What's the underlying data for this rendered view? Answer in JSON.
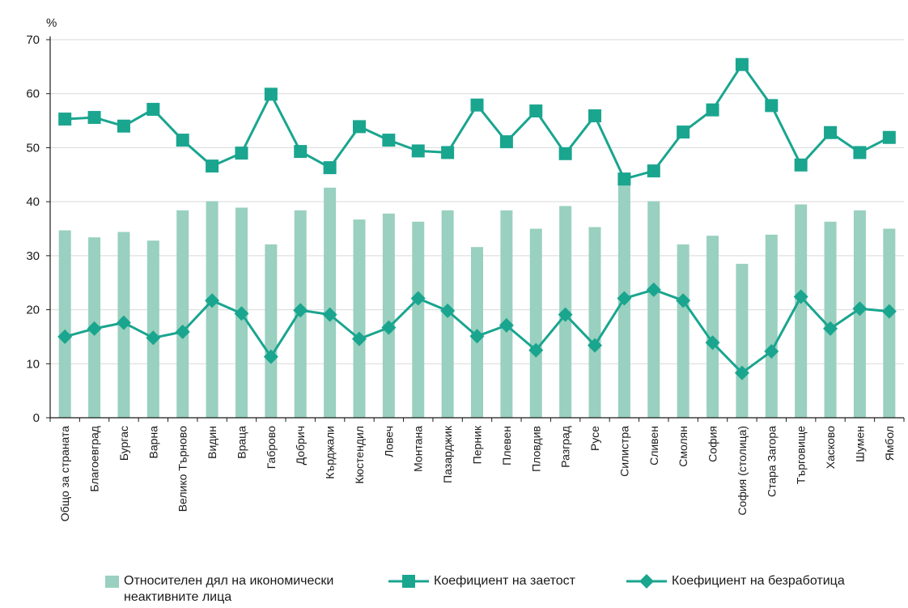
{
  "chart_data": {
    "type": "bar+line",
    "title": "",
    "ylabel": "%",
    "xlabel": "",
    "ylim": [
      0,
      70
    ],
    "yticks": [
      0,
      10,
      20,
      30,
      40,
      50,
      60,
      70
    ],
    "grid": true,
    "legend_position": "bottom",
    "categories": [
      "Общо за страната",
      "Благоевград",
      "Бургас",
      "Варна",
      "Велико Търново",
      "Видин",
      "Враца",
      "Габрово",
      "Добрич",
      "Кърджали",
      "Кюстендил",
      "Ловеч",
      "Монтана",
      "Пазарджик",
      "Перник",
      "Плевен",
      "Пловдив",
      "Разград",
      "Русе",
      "Силистра",
      "Сливен",
      "Смолян",
      "София",
      "София (столица)",
      "Стара Загора",
      "Търговище",
      "Хасково",
      "Шумен",
      "Ямбол"
    ],
    "series": [
      {
        "name": "Относителен дял на икономически неактивните лица",
        "kind": "bar",
        "color": "#99d0bf",
        "values": [
          34.7,
          33.4,
          34.4,
          32.8,
          38.4,
          40.1,
          38.9,
          32.1,
          38.4,
          42.6,
          36.7,
          37.8,
          36.3,
          38.4,
          31.6,
          38.4,
          35.0,
          39.2,
          35.3,
          43.2,
          40.1,
          32.1,
          33.7,
          28.5,
          33.9,
          39.5,
          36.3,
          38.4,
          35.0
        ]
      },
      {
        "name": "Коефициент на заетост",
        "kind": "line",
        "marker": "square",
        "color": "#1aa58f",
        "values": [
          55.3,
          55.6,
          54.0,
          57.1,
          51.4,
          46.6,
          49.0,
          59.9,
          49.3,
          46.3,
          53.9,
          51.4,
          49.4,
          49.1,
          57.9,
          51.1,
          56.8,
          48.9,
          55.9,
          44.2,
          45.7,
          52.9,
          57.0,
          65.4,
          57.8,
          46.8,
          52.8,
          49.1,
          51.9
        ]
      },
      {
        "name": "Коефициент на безработица",
        "kind": "line",
        "marker": "diamond",
        "color": "#1aa58f",
        "values": [
          15.0,
          16.5,
          17.6,
          14.8,
          15.9,
          21.7,
          19.3,
          11.3,
          19.9,
          19.1,
          14.6,
          16.7,
          22.1,
          19.8,
          15.1,
          17.1,
          12.5,
          19.1,
          13.4,
          22.1,
          23.7,
          21.7,
          13.9,
          8.3,
          12.3,
          22.4,
          16.5,
          20.2,
          19.7
        ]
      }
    ]
  }
}
